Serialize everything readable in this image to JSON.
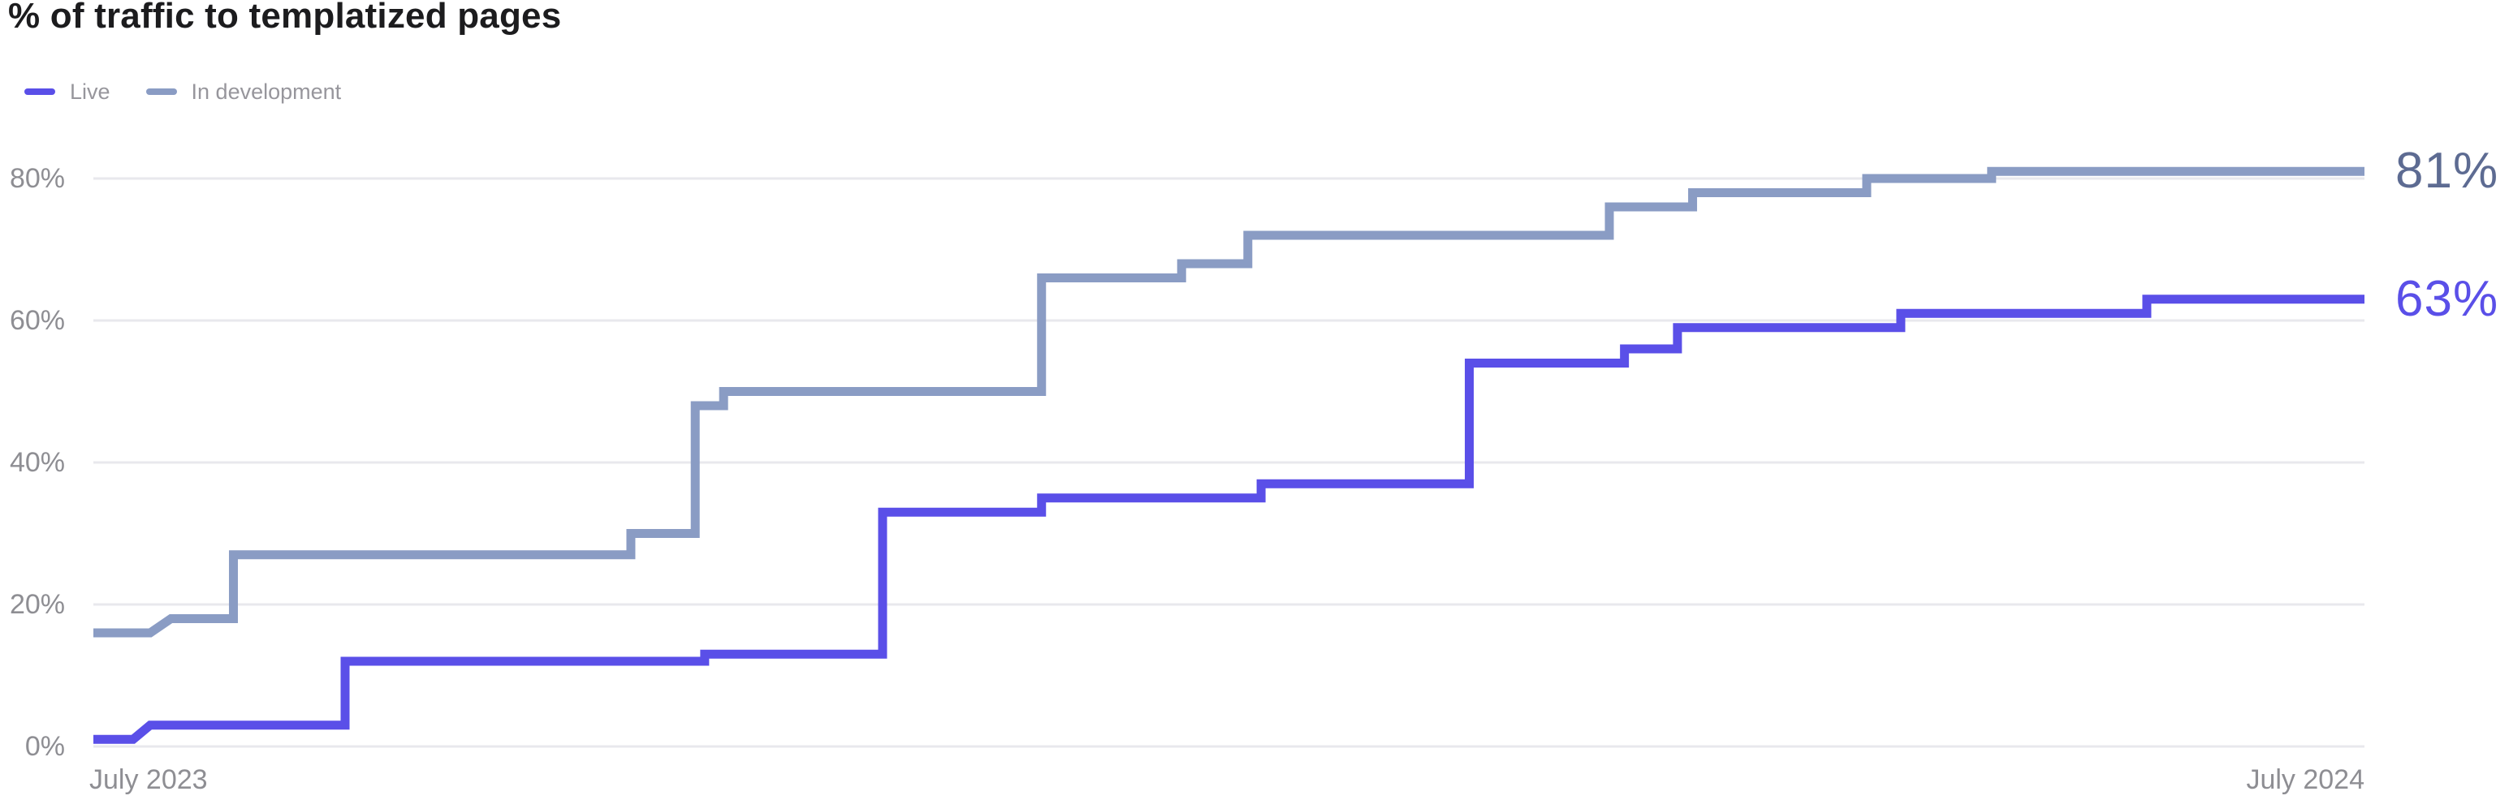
{
  "chart_data": {
    "type": "line",
    "subtype": "step",
    "title": "% of traffic to templatized pages",
    "grid": "horizontal",
    "grid_color": "#e8e8ed",
    "background_color": "#ffffff",
    "x_axis": {
      "start_label": "July 2023",
      "end_label": "July 2024",
      "unit": "months",
      "range": [
        0,
        12
      ]
    },
    "y_axis": {
      "unit": "%",
      "ticks": [
        "0%",
        "20%",
        "40%",
        "60%",
        "80%"
      ],
      "tick_values": [
        0,
        20,
        40,
        60,
        80
      ],
      "min": 0,
      "max": 84.5
    },
    "legend_position": "top-left",
    "series": [
      {
        "name": "In development",
        "color": "#8a9cc4",
        "end_value": 81,
        "end_label": "81%",
        "end_label_color": "#5d6b92",
        "points": [
          [
            0,
            16
          ],
          [
            0.3,
            16
          ],
          [
            0.41,
            18
          ],
          [
            0.74,
            18
          ],
          [
            0.74,
            27
          ],
          [
            2.84,
            27
          ],
          [
            2.84,
            30
          ],
          [
            3.18,
            30
          ],
          [
            3.18,
            48
          ],
          [
            3.33,
            48
          ],
          [
            3.33,
            50
          ],
          [
            5.01,
            50
          ],
          [
            5.01,
            66
          ],
          [
            5.75,
            66
          ],
          [
            5.75,
            68
          ],
          [
            6.1,
            68
          ],
          [
            6.1,
            72
          ],
          [
            8.01,
            72
          ],
          [
            8.01,
            76
          ],
          [
            8.45,
            76
          ],
          [
            8.45,
            78
          ],
          [
            9.37,
            78
          ],
          [
            9.37,
            80
          ],
          [
            10.03,
            80
          ],
          [
            10.03,
            81
          ],
          [
            12,
            81
          ]
        ]
      },
      {
        "name": "Live",
        "color": "#5a4fe8",
        "end_value": 63,
        "end_label": "63%",
        "end_label_color": "#5a4fe8",
        "points": [
          [
            0,
            1
          ],
          [
            0.21,
            1
          ],
          [
            0.3,
            3
          ],
          [
            1.33,
            3
          ],
          [
            1.33,
            12
          ],
          [
            3.23,
            12
          ],
          [
            3.23,
            13
          ],
          [
            4.17,
            13
          ],
          [
            4.17,
            33
          ],
          [
            5.01,
            33
          ],
          [
            5.01,
            35
          ],
          [
            6.17,
            35
          ],
          [
            6.17,
            37
          ],
          [
            7.27,
            37
          ],
          [
            7.27,
            54
          ],
          [
            8.09,
            54
          ],
          [
            8.09,
            56
          ],
          [
            8.37,
            56
          ],
          [
            8.37,
            59
          ],
          [
            9.55,
            59
          ],
          [
            9.55,
            61
          ],
          [
            10.85,
            61
          ],
          [
            10.85,
            63
          ],
          [
            12,
            63
          ]
        ]
      }
    ]
  }
}
